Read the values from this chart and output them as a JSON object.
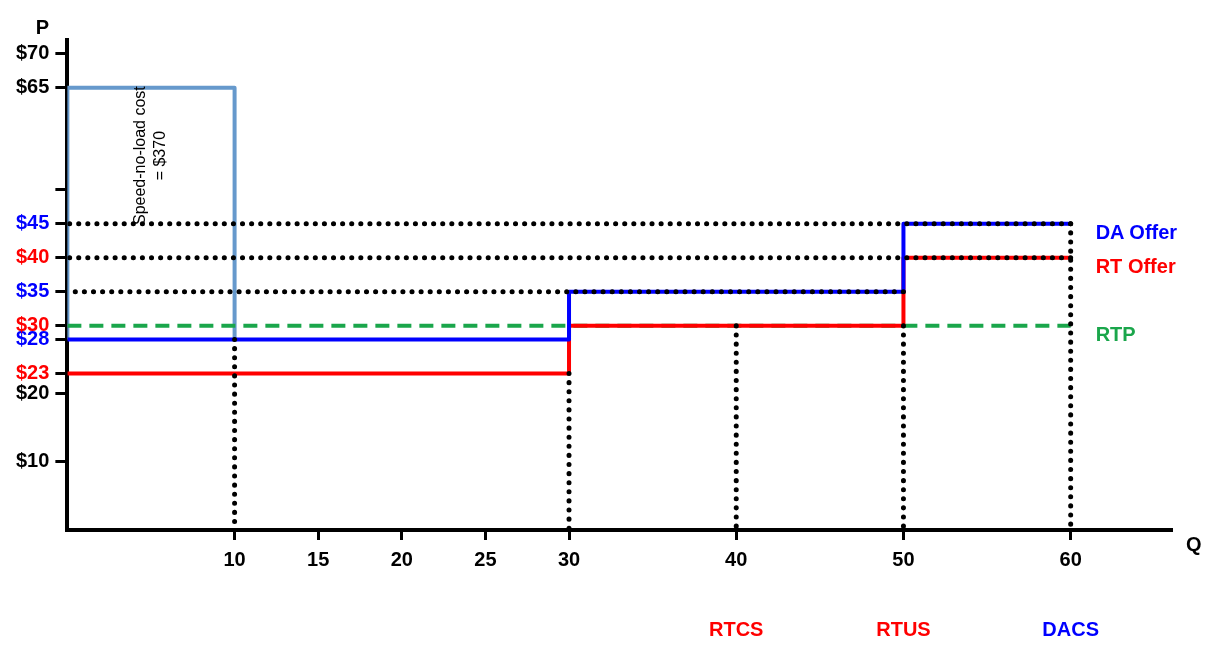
{
  "chart_data": {
    "type": "step",
    "xlabel": "Q",
    "ylabel": "P",
    "xlim": [
      0,
      66
    ],
    "ylim": [
      0,
      72
    ],
    "xticks": [
      10,
      15,
      20,
      25,
      30,
      40,
      50,
      60
    ],
    "yticks": [
      {
        "value": 10,
        "label": "$10"
      },
      {
        "value": 20,
        "label": "$20"
      },
      {
        "value": 23,
        "label": "$23"
      },
      {
        "value": 28,
        "label": "$28"
      },
      {
        "value": 30,
        "label": "$30"
      },
      {
        "value": 35,
        "label": "$35"
      },
      {
        "value": 40,
        "label": "$40"
      },
      {
        "value": 45,
        "label": "$45"
      },
      {
        "value": 50,
        "label": null
      },
      {
        "value": 65,
        "label": "$65"
      },
      {
        "value": 70,
        "label": "$70"
      }
    ],
    "grid": false,
    "legend": false,
    "series": [
      {
        "name": "DA Offer",
        "color": "#0000ff",
        "x": [
          0,
          30,
          50,
          60
        ],
        "values": [
          28,
          35,
          45,
          45
        ]
      },
      {
        "name": "RT Offer",
        "color": "#ff0000",
        "x": [
          0,
          30,
          50,
          60
        ],
        "values": [
          23,
          30,
          40,
          40
        ]
      },
      {
        "name": "RTP",
        "type": "line",
        "line_style": "dashed",
        "color": "#1aa64b",
        "x": [
          0,
          60
        ],
        "values": [
          30,
          30
        ]
      },
      {
        "type": "line",
        "color": "#6699cc",
        "x": [
          0,
          0,
          10,
          10
        ],
        "values": [
          28,
          65,
          65,
          28
        ]
      },
      {
        "type": "line",
        "line_style": "dotted",
        "color": "#000000",
        "x": [
          60,
          0
        ],
        "values": [
          45,
          45
        ]
      },
      {
        "type": "line",
        "line_style": "dotted",
        "color": "#000000",
        "x": [
          60,
          0
        ],
        "values": [
          40,
          40
        ]
      },
      {
        "type": "line",
        "line_style": "dotted",
        "color": "#000000",
        "x": [
          50,
          0
        ],
        "values": [
          35,
          35
        ]
      },
      {
        "type": "line",
        "line_style": "dotted",
        "color": "#000000",
        "x": [
          10,
          10
        ],
        "values": [
          28,
          0
        ]
      },
      {
        "type": "line",
        "line_style": "dotted",
        "color": "#000000",
        "x": [
          30,
          30
        ],
        "values": [
          23,
          0
        ]
      },
      {
        "type": "line",
        "line_style": "dotted",
        "color": "#000000",
        "x": [
          40,
          40
        ],
        "values": [
          30,
          0
        ]
      },
      {
        "type": "line",
        "line_style": "dotted",
        "color": "#000000",
        "x": [
          50,
          50
        ],
        "values": [
          30,
          0
        ]
      },
      {
        "type": "line",
        "line_style": "dotted",
        "color": "#000000",
        "x": [
          60,
          60
        ],
        "values": [
          45,
          0
        ]
      }
    ],
    "annotations": [
      "Speed-no-load cost\n= $370",
      "RTCS",
      "RTUS",
      "DACS"
    ]
  }
}
